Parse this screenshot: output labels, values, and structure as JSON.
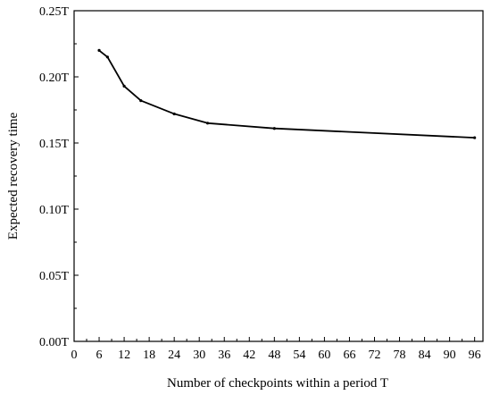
{
  "chart_data": {
    "type": "line",
    "title": "",
    "xlabel": "Number of checkpoints within a period T",
    "ylabel": "Expected recovery time",
    "xlim": [
      0,
      98
    ],
    "ylim": [
      0,
      0.25
    ],
    "xticks": [
      0,
      6,
      12,
      18,
      24,
      30,
      36,
      42,
      48,
      54,
      60,
      66,
      72,
      78,
      84,
      90,
      96
    ],
    "yticks": [
      0,
      0.05,
      0.1,
      0.15,
      0.2,
      0.25
    ],
    "ytick_labels": [
      "0.00T",
      "0.05T",
      "0.10T",
      "0.15T",
      "0.20T",
      "0.25T"
    ],
    "grid": false,
    "series": [
      {
        "x": [
          6,
          8,
          12,
          16,
          24,
          32,
          48,
          96
        ],
        "y": [
          0.22,
          0.215,
          0.193,
          0.182,
          0.172,
          0.165,
          0.161,
          0.154
        ]
      }
    ]
  },
  "colors": {
    "line": "#000000",
    "axis": "#000000"
  }
}
